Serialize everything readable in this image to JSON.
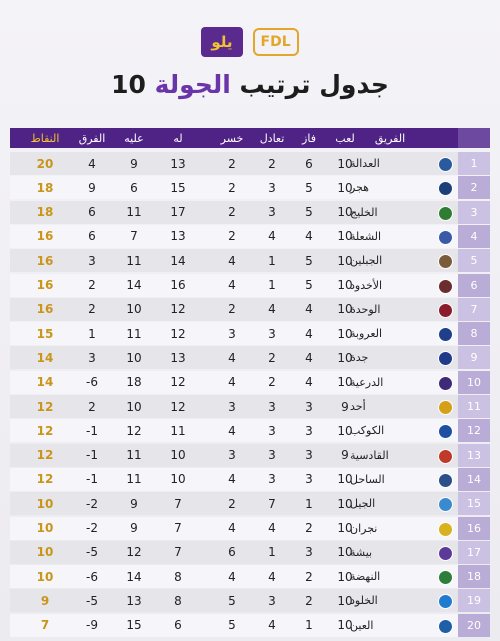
{
  "logos": {
    "sponsor": "يلو",
    "league": "FDL"
  },
  "title": {
    "text": "جدول ترتيب",
    "highlight": "الجولة",
    "round": "10"
  },
  "table": {
    "columns": [
      "الفريق",
      "لعب",
      "فاز",
      "تعادل",
      "خسر",
      "له",
      "عليه",
      "الفرق",
      "النقاط"
    ],
    "rows": [
      [
        1,
        "العدالة",
        10,
        6,
        2,
        2,
        13,
        9,
        4,
        20
      ],
      [
        2,
        "هجر",
        10,
        5,
        3,
        2,
        15,
        6,
        9,
        18
      ],
      [
        3,
        "الخليج",
        10,
        5,
        3,
        2,
        17,
        11,
        6,
        18
      ],
      [
        4,
        "الشعلة",
        10,
        4,
        4,
        2,
        13,
        7,
        6,
        16
      ],
      [
        5,
        "الجبلين",
        10,
        5,
        1,
        4,
        14,
        11,
        3,
        16
      ],
      [
        6,
        "الأخدود",
        10,
        5,
        1,
        4,
        16,
        14,
        2,
        16
      ],
      [
        7,
        "الوحدة",
        10,
        4,
        4,
        2,
        12,
        10,
        2,
        16
      ],
      [
        8,
        "العروبة",
        10,
        4,
        3,
        3,
        12,
        11,
        1,
        15
      ],
      [
        9,
        "جدة",
        10,
        4,
        2,
        4,
        13,
        10,
        3,
        14
      ],
      [
        10,
        "الدرعية",
        10,
        4,
        2,
        4,
        12,
        18,
        -6,
        14
      ],
      [
        11,
        "أحد",
        9,
        3,
        3,
        3,
        12,
        10,
        2,
        12
      ],
      [
        12,
        "الكوكب",
        10,
        3,
        3,
        4,
        11,
        12,
        -1,
        12
      ],
      [
        13,
        "القادسية",
        9,
        3,
        3,
        3,
        10,
        11,
        -1,
        12
      ],
      [
        14,
        "الساحل",
        10,
        3,
        3,
        4,
        10,
        11,
        -1,
        12
      ],
      [
        15,
        "الجيل",
        10,
        1,
        7,
        2,
        7,
        9,
        -2,
        10
      ],
      [
        16,
        "نجران",
        10,
        2,
        4,
        4,
        7,
        9,
        -2,
        10
      ],
      [
        17,
        "بيشة",
        10,
        3,
        1,
        6,
        7,
        12,
        -5,
        10
      ],
      [
        18,
        "النهضة",
        10,
        2,
        4,
        4,
        8,
        14,
        -6,
        10
      ],
      [
        19,
        "الخلود",
        10,
        2,
        3,
        5,
        8,
        13,
        -5,
        9
      ],
      [
        20,
        "العين",
        10,
        1,
        4,
        5,
        6,
        15,
        -9,
        7
      ]
    ]
  }
}
